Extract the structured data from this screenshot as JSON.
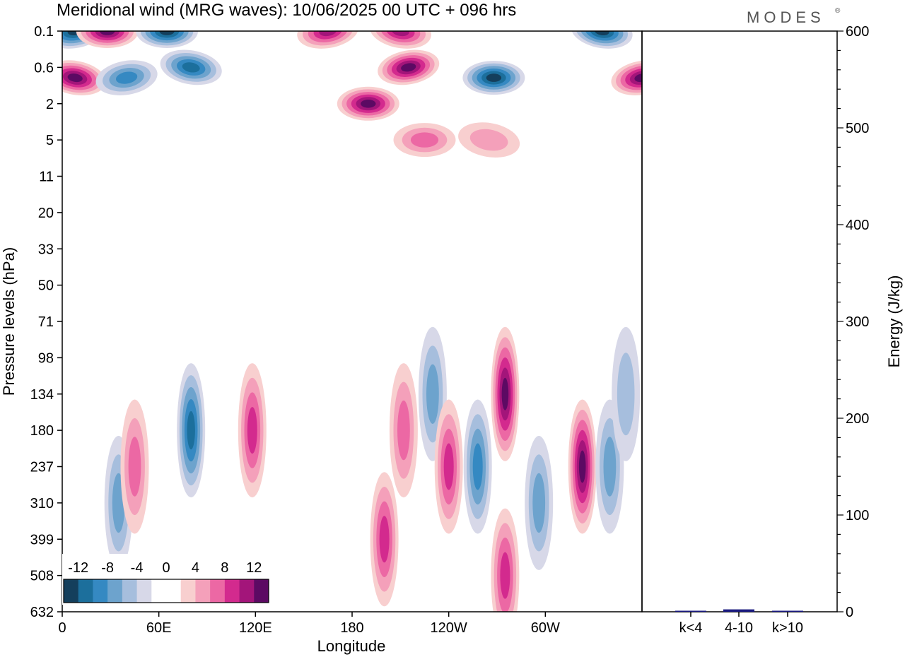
{
  "page_title": "Meridional wind (MRG waves):  10/06/2025  00 UTC  + 096 hrs",
  "logo": "MODES",
  "logo_mark": "®",
  "chart_data": [
    {
      "type": "heatmap",
      "title": "Meridional wind (MRG waves):  10/06/2025  00 UTC  + 096 hrs",
      "xlabel": "Longitude",
      "ylabel": "Pressure levels (hPa)",
      "x_ticks": [
        "0",
        "60E",
        "120E",
        "180",
        "120W",
        "60W"
      ],
      "x_tick_values": [
        0,
        60,
        120,
        180,
        240,
        300
      ],
      "xlim": [
        0,
        360
      ],
      "y_ticks": [
        "0.1",
        "0.6",
        "2",
        "5",
        "11",
        "20",
        "33",
        "50",
        "71",
        "98",
        "134",
        "180",
        "237",
        "310",
        "399",
        "508",
        "632"
      ],
      "y_scale": "categorical pressure levels, top to bottom",
      "contour_levels": [
        -14,
        -12,
        -10,
        -8,
        -6,
        -4,
        -2,
        2,
        4,
        6,
        8,
        10,
        12,
        14
      ],
      "colorbar_labels": [
        "-12",
        "-8",
        "-4",
        "0",
        "4",
        "8",
        "12"
      ],
      "colorbar_colors": [
        "#143f5c",
        "#1c6f9c",
        "#3589c2",
        "#6da3cd",
        "#a6bedd",
        "#d7d8e8",
        "#ffffff",
        "#ffffff",
        "#f8cfcf",
        "#f4a0ba",
        "#ec68a4",
        "#d32a8e",
        "#a3157a",
        "#5c0a63"
      ],
      "colorbar_placement": "bottom-left",
      "features": [
        {
          "lon": 8,
          "level": "0.1",
          "value": -14
        },
        {
          "lon": 28,
          "level": "0.1",
          "value": 14
        },
        {
          "lon": 8,
          "level": "1",
          "value": 12
        },
        {
          "lon": 40,
          "level": "1",
          "value": -8
        },
        {
          "lon": 65,
          "level": "0.1",
          "value": -12
        },
        {
          "lon": 80,
          "level": "0.6",
          "value": -10
        },
        {
          "lon": 165,
          "level": "0.1",
          "value": 10
        },
        {
          "lon": 190,
          "level": "2",
          "value": 14
        },
        {
          "lon": 210,
          "level": "0.1",
          "value": 10
        },
        {
          "lon": 215,
          "level": "0.6",
          "value": 12
        },
        {
          "lon": 268,
          "level": "1",
          "value": -12
        },
        {
          "lon": 335,
          "level": "0.1",
          "value": -14
        },
        {
          "lon": 360,
          "level": "1",
          "value": 12
        },
        {
          "lon": 225,
          "level": "5",
          "value": 6
        },
        {
          "lon": 265,
          "level": "5",
          "value": 4
        },
        {
          "lon": 80,
          "level": "180",
          "value": -10
        },
        {
          "lon": 35,
          "level": "310",
          "value": -6
        },
        {
          "lon": 45,
          "level": "237",
          "value": 6
        },
        {
          "lon": 118,
          "level": "180",
          "value": 8
        },
        {
          "lon": 200,
          "level": "399",
          "value": 8
        },
        {
          "lon": 212,
          "level": "180",
          "value": 6
        },
        {
          "lon": 230,
          "level": "134",
          "value": -6
        },
        {
          "lon": 240,
          "level": "237",
          "value": 8
        },
        {
          "lon": 258,
          "level": "237",
          "value": -8
        },
        {
          "lon": 275,
          "level": "134",
          "value": 12
        },
        {
          "lon": 275,
          "level": "508",
          "value": 8
        },
        {
          "lon": 296,
          "level": "310",
          "value": -6
        },
        {
          "lon": 323,
          "level": "237",
          "value": 14
        },
        {
          "lon": 340,
          "level": "237",
          "value": -6
        },
        {
          "lon": 350,
          "level": "134",
          "value": -4
        }
      ]
    },
    {
      "type": "bar",
      "ylabel": "Energy (J/kg)",
      "ylim": [
        0,
        600
      ],
      "y_ticks": [
        0,
        100,
        200,
        300,
        400,
        500,
        600
      ],
      "categories": [
        "k<4",
        "4-10",
        "k>10"
      ],
      "values": [
        0.4,
        2.5,
        0.2
      ],
      "bar_color": "#1a1a80"
    }
  ]
}
